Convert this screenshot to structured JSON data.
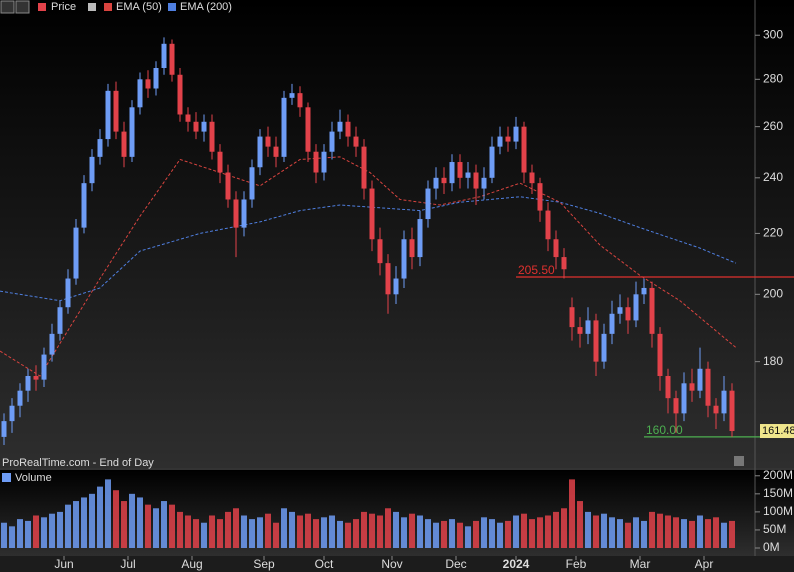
{
  "chart_data": {
    "type": "candlestick",
    "price_name": "Price",
    "watermark": "ProRealTime.com - End of Day",
    "xlim": [
      0,
      92
    ],
    "xticks": [
      {
        "value": 8,
        "label": "Jun"
      },
      {
        "value": 16,
        "label": "Jul"
      },
      {
        "value": 24,
        "label": "Aug"
      },
      {
        "value": 33,
        "label": "Sep"
      },
      {
        "value": 40.5,
        "label": "Oct"
      },
      {
        "value": 49,
        "label": "Nov"
      },
      {
        "value": 57,
        "label": "Dec"
      },
      {
        "value": 64.5,
        "label": "2024"
      },
      {
        "value": 72,
        "label": "Feb"
      },
      {
        "value": 80,
        "label": "Mar"
      },
      {
        "value": 88,
        "label": "Apr"
      }
    ],
    "ylim": [
      152.4,
      317
    ],
    "log_scale": true,
    "yticks": [
      180,
      200,
      220,
      240,
      260,
      280,
      300
    ],
    "up_color": "#6e9cf5",
    "down_color": "#e2424a",
    "open": [
      160,
      164,
      168,
      172,
      176,
      175,
      182,
      188,
      196,
      205,
      222,
      238,
      248,
      255,
      275,
      258,
      248,
      268,
      280,
      276,
      285,
      296,
      282,
      265,
      262,
      258,
      262,
      250,
      242,
      232,
      222,
      232,
      244,
      256,
      252,
      248,
      272,
      274,
      268,
      250,
      242,
      250,
      258,
      262,
      256,
      252,
      236,
      218,
      210,
      200,
      205,
      218,
      212,
      225,
      236,
      240,
      238,
      246,
      240,
      242,
      236,
      240,
      252,
      256,
      254,
      260,
      242,
      238,
      228,
      218,
      212,
      196,
      190,
      188,
      192,
      180,
      188,
      194,
      196,
      192,
      200,
      202,
      188,
      176,
      170,
      166,
      174,
      172,
      178,
      168,
      166,
      172
    ],
    "high": [
      166,
      170,
      174,
      178,
      179,
      184,
      191,
      198,
      208,
      225,
      241,
      251,
      259,
      278,
      279,
      262,
      271,
      283,
      284,
      288,
      299,
      298,
      285,
      268,
      266,
      265,
      265,
      253,
      245,
      235,
      235,
      247,
      259,
      260,
      256,
      275,
      278,
      277,
      270,
      253,
      253,
      262,
      267,
      265,
      260,
      255,
      239,
      222,
      213,
      209,
      221,
      222,
      228,
      239,
      244,
      244,
      249,
      249,
      246,
      245,
      244,
      256,
      260,
      260,
      264,
      262,
      245,
      240,
      231,
      221,
      215,
      199,
      193,
      196,
      194,
      191,
      198,
      200,
      199,
      204,
      205,
      204,
      190,
      178,
      172,
      177,
      178,
      184,
      180,
      170,
      176,
      174
    ],
    "low": [
      158,
      161,
      165,
      169,
      172,
      173,
      180,
      186,
      194,
      203,
      220,
      235,
      245,
      252,
      255,
      244,
      246,
      265,
      272,
      273,
      282,
      279,
      262,
      258,
      255,
      254,
      247,
      238,
      229,
      212,
      219,
      229,
      241,
      248,
      244,
      246,
      269,
      264,
      246,
      238,
      239,
      247,
      255,
      252,
      248,
      232,
      214,
      206,
      194,
      197,
      202,
      208,
      209,
      222,
      232,
      234,
      235,
      236,
      236,
      230,
      232,
      238,
      249,
      250,
      251,
      238,
      234,
      224,
      214,
      208,
      205,
      186,
      184,
      185,
      176,
      178,
      185,
      191,
      188,
      190,
      197,
      184,
      172,
      166,
      161,
      164,
      169,
      170,
      165,
      162,
      164,
      160
    ],
    "close": [
      164,
      168,
      172,
      176,
      175,
      182,
      188,
      196,
      205,
      222,
      238,
      248,
      255,
      275,
      258,
      248,
      268,
      280,
      276,
      285,
      296,
      282,
      265,
      262,
      258,
      262,
      250,
      242,
      232,
      222,
      232,
      244,
      256,
      252,
      248,
      272,
      274,
      268,
      250,
      242,
      250,
      258,
      262,
      256,
      252,
      236,
      218,
      210,
      200,
      205,
      218,
      212,
      225,
      236,
      240,
      238,
      246,
      240,
      242,
      236,
      240,
      252,
      256,
      254,
      260,
      242,
      238,
      228,
      218,
      212,
      208,
      190,
      188,
      192,
      180,
      188,
      194,
      196,
      192,
      200,
      202,
      188,
      176,
      170,
      166,
      174,
      172,
      178,
      168,
      166,
      172,
      161.48
    ],
    "series": [
      {
        "name": "EMA (50)",
        "color": "#d9443f",
        "x": [
          0,
          5,
          8.75,
          12.5,
          17.5,
          22.5,
          27.5,
          32.5,
          37.5,
          42.5,
          46.25,
          50,
          55,
          60,
          65,
          70,
          75,
          80,
          85,
          92
        ],
        "values": [
          183,
          176,
          190,
          205,
          226,
          247,
          242,
          237,
          247,
          248,
          242,
          232,
          230,
          233,
          238,
          231,
          216,
          206,
          198,
          184
        ]
      },
      {
        "name": "EMA (200)",
        "color": "#4f7fe0",
        "x": [
          0,
          7.5,
          12.5,
          17.5,
          25,
          32.5,
          37.5,
          42.5,
          47.5,
          52.5,
          57.5,
          65,
          70,
          75,
          80,
          87.5,
          92
        ],
        "values": [
          201,
          198,
          202,
          214,
          220,
          224,
          228,
          230,
          229,
          228,
          231,
          233,
          231,
          227,
          222,
          215,
          210
        ]
      }
    ],
    "hlines": [
      {
        "value": 205.5,
        "label": "205.50",
        "color": "#e0312e",
        "from": 64.5
      },
      {
        "value": 160,
        "label": "160.00",
        "color": "#4caf50",
        "from": 80.5
      }
    ],
    "volume": {
      "title": "Volume",
      "ylim": [
        0,
        216
      ],
      "yticks": [
        {
          "value": 0,
          "label": "0M"
        },
        {
          "value": 50,
          "label": "50M"
        },
        {
          "value": 100,
          "label": "100M"
        },
        {
          "value": 150,
          "label": "150M"
        },
        {
          "value": 200,
          "label": "200M"
        }
      ],
      "values": [
        70,
        60,
        80,
        75,
        90,
        85,
        95,
        100,
        120,
        130,
        140,
        150,
        170,
        190,
        160,
        130,
        150,
        140,
        120,
        110,
        130,
        120,
        100,
        90,
        80,
        70,
        90,
        80,
        100,
        110,
        90,
        80,
        85,
        95,
        70,
        110,
        100,
        90,
        95,
        80,
        85,
        90,
        75,
        70,
        80,
        100,
        95,
        90,
        110,
        100,
        85,
        95,
        90,
        80,
        70,
        75,
        80,
        70,
        60,
        75,
        85,
        80,
        70,
        75,
        90,
        95,
        80,
        85,
        90,
        100,
        110,
        190,
        130,
        100,
        90,
        95,
        85,
        80,
        70,
        85,
        75,
        100,
        95,
        90,
        85,
        80,
        75,
        90,
        80,
        85,
        70,
        75
      ]
    }
  }
}
